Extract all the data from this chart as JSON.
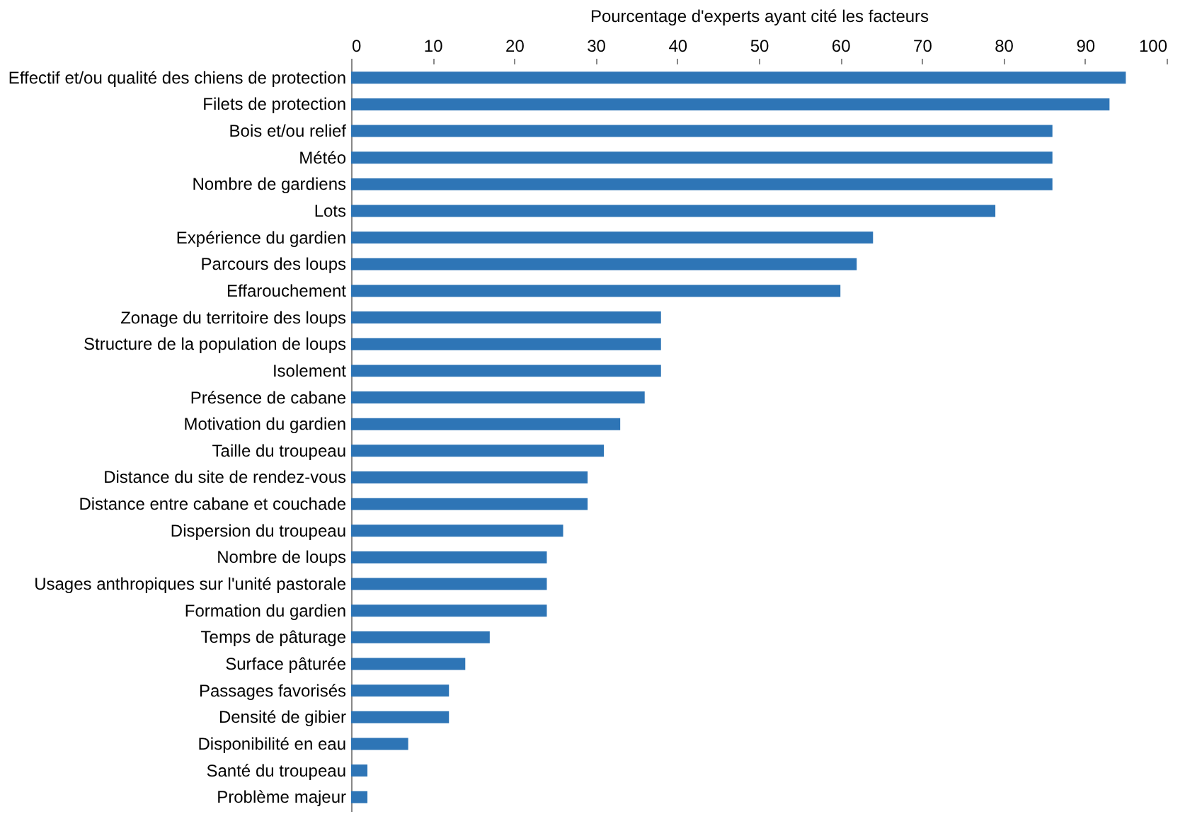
{
  "chart_data": {
    "type": "bar",
    "orientation": "horizontal",
    "xlabel": "Pourcentage d'experts ayant cité les facteurs",
    "categories": [
      "Effectif et/ou qualité des chiens de protection",
      "Filets de protection",
      "Bois et/ou relief",
      "Météo",
      "Nombre de gardiens",
      "Lots",
      "Expérience du gardien",
      "Parcours des loups",
      "Effarouchement",
      "Zonage du territoire des loups",
      "Structure de la population de loups",
      "Isolement",
      "Présence de cabane",
      "Motivation du gardien",
      "Taille du troupeau",
      "Distance du site de rendez-vous",
      "Distance entre cabane et couchade",
      "Dispersion du troupeau",
      "Nombre de loups",
      "Usages anthropiques sur l'unité pastorale",
      "Formation du gardien",
      "Temps de pâturage",
      "Surface pâturée",
      "Passages favorisés",
      "Densité de gibier",
      "Disponibilité en eau",
      "Santé du troupeau",
      "Problème majeur"
    ],
    "values": [
      95,
      93,
      86,
      86,
      86,
      79,
      64,
      62,
      60,
      38,
      38,
      38,
      36,
      33,
      31,
      29,
      29,
      26,
      24,
      24,
      24,
      17,
      14,
      12,
      12,
      7,
      2,
      2
    ],
    "color": "#2e75b6",
    "xlim": [
      0,
      100
    ],
    "xticks": [
      0,
      10,
      20,
      30,
      40,
      50,
      60,
      70,
      80,
      90,
      100
    ],
    "grid": false
  }
}
